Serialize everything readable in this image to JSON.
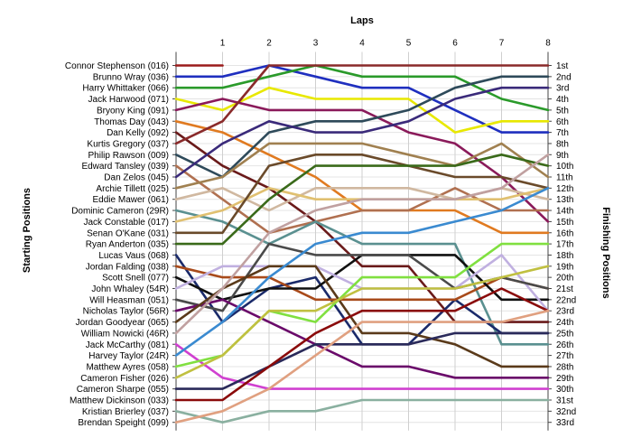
{
  "chart_data": {
    "type": "line",
    "title": "",
    "top_axis_label": "Laps",
    "left_axis_label": "Starting Positions",
    "right_axis_label": "Finishing Positions",
    "x": [
      0,
      1,
      2,
      3,
      4,
      5,
      6,
      7,
      8
    ],
    "x_tick_labels": [
      "1",
      "2",
      "3",
      "4",
      "5",
      "6",
      "7",
      "8"
    ],
    "grid": true,
    "drivers": [
      "Connor Stephenson (016)",
      "Brunno Wray (036)",
      "Harry Whittaker (066)",
      "Jack Harwood (071)",
      "Bryony King (091)",
      "Thomas Day (043)",
      "Dan Kelly (092)",
      "Kurtis Gregory (037)",
      "Philip Rawson (009)",
      "Edward Tansley (039)",
      "Dan Zelos (045)",
      "Archie Tillett (025)",
      "Eddie Mawer (061)",
      "Dominic Cameron (29R)",
      "Jack Constable (017)",
      "Senan O'Kane (031)",
      "Ryan Anderton (035)",
      "Lucas Vaus (068)",
      "Jordan Falding (038)",
      "Scott Snell (077)",
      "John Whaley (54R)",
      "Will Heasman (051)",
      "Nicholas Taylor (56R)",
      "Jordan Goodyear (065)",
      "William Nowicki (46R)",
      "Jack McCarthy (081)",
      "Harvey Taylor (24R)",
      "Matthew Ayres (058)",
      "Cameron Fisher (026)",
      "Cameron Sharpe (055)",
      "Matthew Dickinson (033)",
      "Kristian Brierley (037)",
      "Brendan Speight (099)"
    ],
    "finishing_positions": [
      "1st",
      "2nd",
      "3rd",
      "4th",
      "5th",
      "6th",
      "7th",
      "8th",
      "9th",
      "10th",
      "11th",
      "12th",
      "13th",
      "14th",
      "15th",
      "16th",
      "17th",
      "18th",
      "19th",
      "20th",
      "21st",
      "22nd",
      "23rd",
      "24th",
      "25th",
      "26th",
      "27th",
      "28th",
      "29th",
      "30th",
      "31st",
      "32nd",
      "33rd"
    ],
    "series": [
      {
        "color": "#9b1b1b",
        "positions": [
          1,
          1
        ]
      },
      {
        "color": "#1f2fbf",
        "positions": [
          2,
          2,
          1,
          2,
          3,
          3,
          5,
          7,
          7
        ]
      },
      {
        "color": "#2a9a2a",
        "positions": [
          3,
          3,
          2,
          1,
          2,
          2,
          2,
          4,
          5
        ]
      },
      {
        "color": "#e8e800",
        "positions": [
          4,
          5,
          3,
          4,
          4,
          4,
          7,
          6,
          6
        ]
      },
      {
        "color": "#8a1a5a",
        "positions": [
          5,
          4,
          5,
          5,
          5,
          7,
          8,
          11,
          15
        ]
      },
      {
        "color": "#e07a20",
        "positions": [
          6,
          7,
          9,
          11,
          14,
          14,
          14,
          16,
          16
        ]
      },
      {
        "color": "#6a1a1a",
        "positions": [
          7,
          10,
          12,
          15,
          19,
          19,
          24,
          24,
          24
        ]
      },
      {
        "color": "#8a2a2a",
        "positions": [
          8,
          6,
          1,
          1,
          1,
          1,
          1,
          1,
          1
        ]
      },
      {
        "color": "#2e4a5a",
        "positions": [
          9,
          11,
          7,
          6,
          6,
          5,
          3,
          2,
          2
        ]
      },
      {
        "color": "#b07050",
        "positions": [
          10,
          13,
          16,
          15,
          14,
          14,
          12,
          14,
          14
        ]
      },
      {
        "color": "#3a2a7a",
        "positions": [
          11,
          8,
          6,
          7,
          7,
          6,
          4,
          3,
          3
        ]
      },
      {
        "color": "#a08050",
        "positions": [
          12,
          11,
          8,
          8,
          8,
          9,
          10,
          8,
          11
        ]
      },
      {
        "color": "#d0b8a0",
        "positions": [
          13,
          12,
          14,
          12,
          12,
          12,
          13,
          12,
          13
        ]
      },
      {
        "color": "#5a9090",
        "positions": [
          14,
          15,
          17,
          15,
          17,
          17,
          17,
          26,
          26
        ]
      },
      {
        "color": "#e0c070",
        "positions": [
          15,
          14,
          12,
          13,
          13,
          13,
          13,
          13,
          12
        ]
      },
      {
        "color": "#6a4a2a",
        "positions": [
          16,
          16,
          10,
          9,
          9,
          10,
          11,
          11,
          12
        ]
      },
      {
        "color": "#3a6a1a",
        "positions": [
          17,
          17,
          13,
          10,
          10,
          10,
          10,
          9,
          10
        ]
      },
      {
        "color": "#1a2a6a",
        "positions": [
          18,
          24,
          21,
          20,
          26,
          26,
          22,
          25,
          25
        ]
      },
      {
        "color": "#a84a1a",
        "positions": [
          19,
          20,
          20,
          22,
          22,
          22,
          22,
          20,
          21
        ]
      },
      {
        "color": "#101010",
        "positions": [
          20,
          22,
          21,
          21,
          18,
          18,
          18,
          22,
          22
        ]
      },
      {
        "color": "#c0b0e0",
        "positions": [
          21,
          19,
          19,
          19,
          21,
          21,
          21,
          18,
          23
        ]
      },
      {
        "color": "#4a4a4a",
        "positions": [
          22,
          23,
          17,
          18,
          18,
          18,
          21,
          20,
          21
        ]
      },
      {
        "color": "#6a0a6a",
        "positions": [
          23,
          22,
          24,
          26,
          28,
          28,
          29,
          29,
          29
        ]
      },
      {
        "color": "#5a3a1a",
        "positions": [
          24,
          21,
          19,
          19,
          25,
          25,
          26,
          28,
          28
        ]
      },
      {
        "color": "#c0a0a0",
        "positions": [
          25,
          21,
          16,
          14,
          13,
          13,
          13,
          12,
          9
        ]
      },
      {
        "color": "#d040d0",
        "positions": [
          26,
          29,
          30,
          30,
          30,
          30,
          30,
          30,
          30
        ]
      },
      {
        "color": "#3a8ad0",
        "positions": [
          27,
          24,
          20,
          17,
          16,
          16,
          15,
          14,
          12
        ]
      },
      {
        "color": "#80e040",
        "positions": [
          28,
          27,
          23,
          24,
          20,
          20,
          20,
          17,
          17
        ]
      },
      {
        "color": "#c0c040",
        "positions": [
          29,
          27,
          23,
          23,
          21,
          21,
          21,
          20,
          19
        ]
      },
      {
        "color": "#2a2a5a",
        "positions": [
          30,
          30,
          28,
          26,
          26,
          26,
          25,
          25,
          25
        ]
      },
      {
        "color": "#8a0a0a",
        "positions": [
          31,
          31,
          28,
          25,
          23,
          23,
          23,
          21,
          23
        ]
      },
      {
        "color": "#8ab0a0",
        "positions": [
          32,
          33,
          32,
          32,
          31,
          31,
          31,
          31,
          31
        ]
      },
      {
        "color": "#e0a080",
        "positions": [
          33,
          32,
          30,
          27,
          24,
          24,
          24,
          24,
          23
        ]
      }
    ]
  }
}
